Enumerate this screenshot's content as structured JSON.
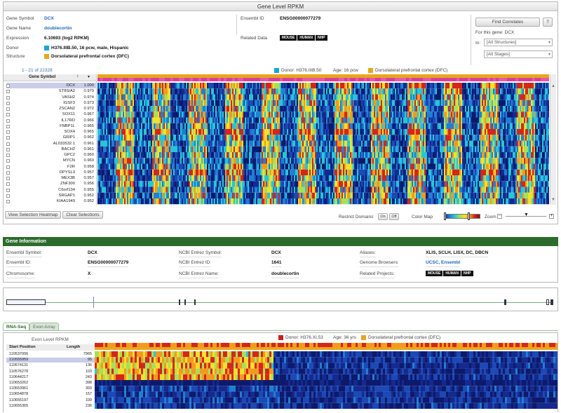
{
  "panel_title": "Gene Level RPKM",
  "gene": {
    "symbol_label": "Gene Symbol",
    "symbol": "DCX",
    "name_label": "Gene Name",
    "name": "doublecortin",
    "expression_label": "Expression",
    "expression": "6.10693 (log2 RPKM)",
    "donor_label": "Donor",
    "donor": "H376.IIIB.50, 16 pcw, male, Hispanic",
    "structure_label": "Structure",
    "structure": "Dorsolateral prefrontal cortex (DFC)",
    "ensembl_label": "Ensembl ID",
    "ensembl": "ENSG00000077279",
    "related_label": "Related Data"
  },
  "tags": [
    "MOUSE",
    "HUMAN",
    "NHP"
  ],
  "correlates": {
    "button": "Find Correlates",
    "help": "?",
    "for_gene": "For this gene: DCX",
    "in_label": "In:",
    "structures": "[All Structures]",
    "stages": "[All Stages]"
  },
  "heatmap": {
    "range": "1 - 21 of 22328",
    "col_symbol": "Gene Symbol",
    "legend_donor": "Donor: H376.IIIB.50",
    "legend_age": "Age: 16 pcw",
    "legend_structure": "Dorsolateral prefrontal cortex (DFC)",
    "rows": [
      {
        "symbol": "DCX",
        "corr": "1.000"
      },
      {
        "symbol": "ST8SIA2",
        "corr": "0.979"
      },
      {
        "symbol": "VASH2",
        "corr": "0.974"
      },
      {
        "symbol": "IGSF3",
        "corr": "0.973"
      },
      {
        "symbol": "ZSCAN2",
        "corr": "0.972"
      },
      {
        "symbol": "SOX11",
        "corr": "0.967"
      },
      {
        "symbol": "IL17RD",
        "corr": "0.966"
      },
      {
        "symbol": "FNBP1L",
        "corr": "0.965"
      },
      {
        "symbol": "SOX4",
        "corr": "0.965"
      },
      {
        "symbol": "GRIP1",
        "corr": "0.962"
      },
      {
        "symbol": "AL033532.1",
        "corr": "0.961"
      },
      {
        "symbol": "BACH2",
        "corr": "0.961"
      },
      {
        "symbol": "GPC2",
        "corr": "0.960"
      },
      {
        "symbol": "MYCN",
        "corr": "0.960"
      },
      {
        "symbol": "F2R",
        "corr": "0.958"
      },
      {
        "symbol": "DPYSL3",
        "corr": "0.957"
      },
      {
        "symbol": "MEX3B",
        "corr": "0.957"
      },
      {
        "symbol": "ZNF300",
        "corr": "0.956"
      },
      {
        "symbol": "C6orf134",
        "corr": "0.955"
      },
      {
        "symbol": "SRGAP1",
        "corr": "0.952"
      },
      {
        "symbol": "KIAA1949",
        "corr": "0.952"
      }
    ],
    "view_selection": "View Selection Heatmap",
    "clear_selections": "Clear Selections",
    "restrict_domains": "Restrict Domains",
    "on": "On",
    "off": "Off",
    "color_map": "Color Map",
    "zoom": "Zoom"
  },
  "gene_info": {
    "header": "Gene Information",
    "ensembl_symbol_label": "Ensembl Symbol:",
    "ensembl_symbol": "DCX",
    "ensembl_id_label": "Ensembl ID:",
    "ensembl_id": "ENSG00000077279",
    "chromosome_label": "Chromosome:",
    "chromosome": "X",
    "ncbi_symbol_label": "NCBI Entrez Symbol:",
    "ncbi_symbol": "DCX",
    "ncbi_id_label": "NCBI Entrez ID:",
    "ncbi_id": "1641",
    "ncbi_name_label": "NCBI Entrez Name:",
    "ncbi_name": "doublecortin",
    "aliases_label": "Aliases:",
    "aliases": "XLIS, SCLH, LISX, DC, DBCN",
    "browsers_label": "Genome Browsers:",
    "browsers": "UCSC, Ensembl",
    "projects_label": "Related Projects:"
  },
  "tabs": {
    "rnaseq": "RNA-Seq",
    "exon_array": "Exon Array"
  },
  "exon": {
    "title": "Exon Level RPKM",
    "col_start": "Start Position",
    "col_length": "Length",
    "legend_donor": "Donor: H376.XI.53",
    "legend_age": "Age: 36 yrs",
    "legend_structure": "Dorsolateral prefrontal cortex (DFC)",
    "rows": [
      {
        "start": "110537006",
        "len": "7965"
      },
      {
        "start": "110555959",
        "len": "95"
      },
      {
        "start": "110574131",
        "len": "136"
      },
      {
        "start": "110576278",
        "len": "103"
      },
      {
        "start": "110644217",
        "len": "243"
      },
      {
        "start": "110653262",
        "len": "398"
      },
      {
        "start": "110653961",
        "len": "393"
      },
      {
        "start": "110654878",
        "len": "157"
      },
      {
        "start": "110655197",
        "len": "109"
      },
      {
        "start": "110655365",
        "len": "236"
      }
    ]
  },
  "colors": {
    "accent_green": "#2c6b2c",
    "donor_blue": "#19a6d6",
    "structure_yellow": "#e8a61c",
    "donor_red": "#c8201e",
    "link_blue": "#1e67b8"
  }
}
